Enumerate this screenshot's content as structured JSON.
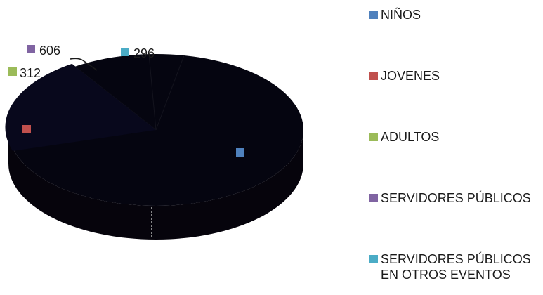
{
  "chart_data": {
    "type": "pie",
    "title": "",
    "categories": [
      "NIÑOS",
      "JOVENES",
      "ADULTOS",
      "SERVIDORES PÚBLICOS",
      "SERVIDORES PÚBLICOS EN OTROS EVENTOS"
    ],
    "values": [
      null,
      null,
      312,
      606,
      296
    ],
    "data_labels": [
      "",
      "",
      "312",
      "606",
      "296"
    ],
    "colors": [
      "#4f81bd",
      "#c0504d",
      "#9bbb59",
      "#8064a2",
      "#4bacc6"
    ],
    "slice_fill": "#050510",
    "legend_position": "right",
    "three_d": true
  }
}
